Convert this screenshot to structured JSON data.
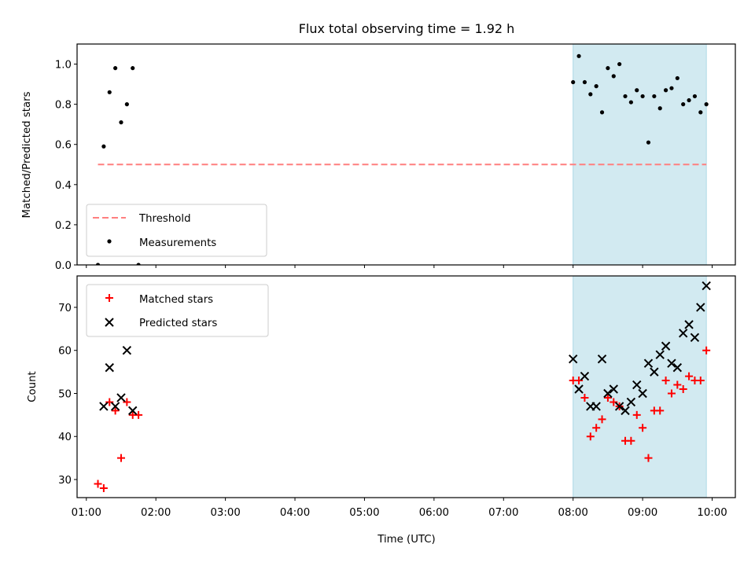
{
  "chart_data": {
    "title": "Flux total observing time = 1.92 h",
    "xlabel": "Time (UTC)",
    "xlim": [
      "00:52",
      "10:20"
    ],
    "xticks": [
      "01:00",
      "02:00",
      "03:00",
      "04:00",
      "05:00",
      "06:00",
      "07:00",
      "08:00",
      "09:00",
      "10:00"
    ],
    "highlight_span": [
      "08:00",
      "09:55"
    ],
    "colors": {
      "highlight": "#add8e6",
      "threshold": "#ff7f7f",
      "measurement": "#000000",
      "matched": "#ff0000",
      "predicted": "#000000"
    },
    "panels": [
      {
        "type": "scatter",
        "ylabel": "Matched/Predicted stars",
        "ylim": [
          0,
          1.1
        ],
        "yticks": [
          "0.0",
          "0.2",
          "0.4",
          "0.6",
          "0.8",
          "1.0"
        ],
        "legend_position": "lower-left",
        "threshold": {
          "name": "Threshold",
          "y": 0.5,
          "x_range": [
            "01:10",
            "09:55"
          ],
          "style": "dashed"
        },
        "measurements": {
          "name": "Measurements",
          "points": [
            [
              "01:10",
              0.0
            ],
            [
              "01:15",
              0.59
            ],
            [
              "01:20",
              0.86
            ],
            [
              "01:25",
              0.98
            ],
            [
              "01:30",
              0.71
            ],
            [
              "01:35",
              0.8
            ],
            [
              "01:40",
              0.98
            ],
            [
              "01:45",
              0.0
            ],
            [
              "08:00",
              0.91
            ],
            [
              "08:05",
              1.04
            ],
            [
              "08:10",
              0.91
            ],
            [
              "08:15",
              0.85
            ],
            [
              "08:20",
              0.89
            ],
            [
              "08:25",
              0.76
            ],
            [
              "08:30",
              0.98
            ],
            [
              "08:35",
              0.94
            ],
            [
              "08:40",
              1.0
            ],
            [
              "08:45",
              0.84
            ],
            [
              "08:50",
              0.81
            ],
            [
              "08:55",
              0.87
            ],
            [
              "09:00",
              0.84
            ],
            [
              "09:05",
              0.61
            ],
            [
              "09:10",
              0.84
            ],
            [
              "09:15",
              0.78
            ],
            [
              "09:20",
              0.87
            ],
            [
              "09:25",
              0.88
            ],
            [
              "09:30",
              0.93
            ],
            [
              "09:35",
              0.8
            ],
            [
              "09:40",
              0.82
            ],
            [
              "09:45",
              0.84
            ],
            [
              "09:50",
              0.76
            ],
            [
              "09:55",
              0.8
            ]
          ]
        }
      },
      {
        "type": "scatter",
        "ylabel": "Count",
        "ylim": [
          25.8,
          77.3
        ],
        "yticks": [
          "30",
          "40",
          "50",
          "60",
          "70"
        ],
        "legend_position": "upper-left",
        "series": [
          {
            "name": "Matched stars",
            "marker": "plus",
            "points": [
              [
                "01:10",
                29
              ],
              [
                "01:15",
                28
              ],
              [
                "01:20",
                48
              ],
              [
                "01:25",
                46
              ],
              [
                "01:30",
                35
              ],
              [
                "01:35",
                48
              ],
              [
                "01:40",
                45
              ],
              [
                "01:45",
                45
              ],
              [
                "08:00",
                53
              ],
              [
                "08:05",
                53
              ],
              [
                "08:10",
                49
              ],
              [
                "08:15",
                40
              ],
              [
                "08:20",
                42
              ],
              [
                "08:25",
                44
              ],
              [
                "08:30",
                49
              ],
              [
                "08:35",
                48
              ],
              [
                "08:40",
                47
              ],
              [
                "08:45",
                39
              ],
              [
                "08:50",
                39
              ],
              [
                "08:55",
                45
              ],
              [
                "09:00",
                42
              ],
              [
                "09:05",
                35
              ],
              [
                "09:10",
                46
              ],
              [
                "09:15",
                46
              ],
              [
                "09:20",
                53
              ],
              [
                "09:25",
                50
              ],
              [
                "09:30",
                52
              ],
              [
                "09:35",
                51
              ],
              [
                "09:40",
                54
              ],
              [
                "09:45",
                53
              ],
              [
                "09:50",
                53
              ],
              [
                "09:55",
                60
              ]
            ]
          },
          {
            "name": "Predicted stars",
            "marker": "x",
            "points": [
              [
                "01:15",
                47
              ],
              [
                "01:20",
                56
              ],
              [
                "01:25",
                47
              ],
              [
                "01:30",
                49
              ],
              [
                "01:35",
                60
              ],
              [
                "01:40",
                46
              ],
              [
                "08:00",
                58
              ],
              [
                "08:05",
                51
              ],
              [
                "08:10",
                54
              ],
              [
                "08:15",
                47
              ],
              [
                "08:20",
                47
              ],
              [
                "08:25",
                58
              ],
              [
                "08:30",
                50
              ],
              [
                "08:35",
                51
              ],
              [
                "08:40",
                47
              ],
              [
                "08:45",
                46
              ],
              [
                "08:50",
                48
              ],
              [
                "08:55",
                52
              ],
              [
                "09:00",
                50
              ],
              [
                "09:05",
                57
              ],
              [
                "09:10",
                55
              ],
              [
                "09:15",
                59
              ],
              [
                "09:20",
                61
              ],
              [
                "09:25",
                57
              ],
              [
                "09:30",
                56
              ],
              [
                "09:35",
                64
              ],
              [
                "09:40",
                66
              ],
              [
                "09:45",
                63
              ],
              [
                "09:50",
                70
              ],
              [
                "09:55",
                75
              ]
            ]
          }
        ]
      }
    ]
  }
}
